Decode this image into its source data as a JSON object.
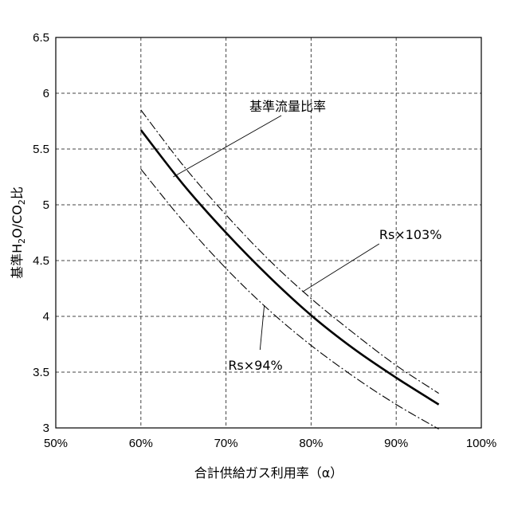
{
  "chart_data": {
    "type": "line",
    "xlabel": "合計供給ガス利用率（α）",
    "ylabel_prefix": "基準H",
    "ylabel_sub1": "2",
    "ylabel_mid": "O/CO",
    "ylabel_sub2": "2",
    "ylabel_suffix": "比",
    "xlim": [
      0.5,
      1.0
    ],
    "ylim": [
      3,
      6.5
    ],
    "x_ticks": [
      0.5,
      0.6,
      0.7,
      0.8,
      0.9,
      1.0
    ],
    "x_tick_labels": [
      "50%",
      "60%",
      "70%",
      "80%",
      "90%",
      "100%"
    ],
    "y_ticks": [
      3,
      3.5,
      4,
      4.5,
      5,
      5.5,
      6,
      6.5
    ],
    "y_tick_labels": [
      "3",
      "3.5",
      "4",
      "4.5",
      "5",
      "5.5",
      "6",
      "6.5"
    ],
    "grid": true,
    "series": [
      {
        "name": "基準流量比率",
        "style": "solid-bold",
        "x": [
          0.6,
          0.65,
          0.7,
          0.75,
          0.8,
          0.85,
          0.9,
          0.95
        ],
        "y": [
          5.67,
          5.18,
          4.75,
          4.36,
          4.01,
          3.71,
          3.45,
          3.21
        ]
      },
      {
        "name": "Rs×103%",
        "style": "dash-dot",
        "x": [
          0.6,
          0.65,
          0.7,
          0.75,
          0.8,
          0.85,
          0.9,
          0.95
        ],
        "y": [
          5.85,
          5.35,
          4.91,
          4.51,
          4.16,
          3.85,
          3.56,
          3.31
        ]
      },
      {
        "name": "Rs×94%",
        "style": "dash-dot",
        "x": [
          0.6,
          0.65,
          0.7,
          0.75,
          0.8,
          0.85,
          0.9,
          0.95
        ],
        "y": [
          5.32,
          4.85,
          4.43,
          4.06,
          3.74,
          3.46,
          3.21,
          2.99
        ]
      }
    ],
    "annotations": [
      {
        "text": "基準流量比率",
        "series_index": 0,
        "point": [
          0.638,
          5.25
        ],
        "label_at": [
          0.765,
          5.8
        ]
      },
      {
        "text": "Rs×103%",
        "series_index": 1,
        "point": [
          0.79,
          4.22
        ],
        "label_at": [
          0.88,
          4.65
        ]
      },
      {
        "text": "Rs×94%",
        "series_index": 2,
        "point": [
          0.745,
          4.1
        ],
        "label_at": [
          0.74,
          3.7
        ]
      }
    ]
  }
}
